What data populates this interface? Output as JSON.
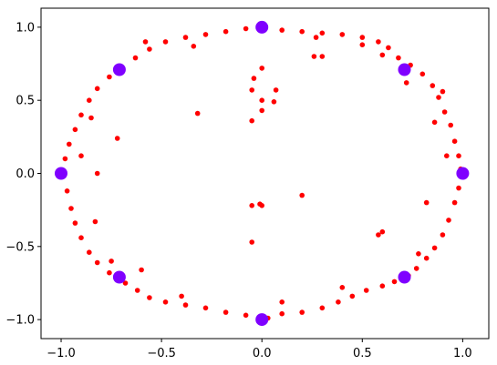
{
  "chart_data": {
    "type": "scatter",
    "title": "",
    "xlabel": "",
    "ylabel": "",
    "xlim": [
      -1.1,
      1.13
    ],
    "ylim": [
      -1.13,
      1.13
    ],
    "grid": false,
    "legend": "none",
    "x_ticks": [
      {
        "value": -1.0,
        "label": "−1.0"
      },
      {
        "value": -0.5,
        "label": "−0.5"
      },
      {
        "value": 0.0,
        "label": "0.0"
      },
      {
        "value": 0.5,
        "label": "0.5"
      },
      {
        "value": 1.0,
        "label": "1.0"
      }
    ],
    "y_ticks": [
      {
        "value": 1.0,
        "label": "1.0"
      },
      {
        "value": 0.5,
        "label": "0.5"
      },
      {
        "value": 0.0,
        "label": "0.0"
      },
      {
        "value": -0.5,
        "label": "−0.5"
      },
      {
        "value": -1.0,
        "label": "−1.0"
      }
    ],
    "series": [
      {
        "color": "#ff0000",
        "points": [
          [
            0.0,
            1.0
          ],
          [
            0.1,
            0.98
          ],
          [
            0.2,
            0.97
          ],
          [
            0.3,
            0.96
          ],
          [
            0.4,
            0.95
          ],
          [
            0.5,
            0.93
          ],
          [
            0.58,
            0.9
          ],
          [
            0.63,
            0.86
          ],
          [
            0.68,
            0.79
          ],
          [
            0.74,
            0.74
          ],
          [
            0.8,
            0.68
          ],
          [
            0.85,
            0.6
          ],
          [
            0.88,
            0.52
          ],
          [
            0.91,
            0.42
          ],
          [
            0.94,
            0.33
          ],
          [
            0.96,
            0.22
          ],
          [
            0.98,
            0.12
          ],
          [
            0.99,
            0.03
          ],
          [
            0.98,
            -0.1
          ],
          [
            0.96,
            -0.2
          ],
          [
            0.93,
            -0.32
          ],
          [
            0.9,
            -0.42
          ],
          [
            0.86,
            -0.51
          ],
          [
            0.82,
            -0.58
          ],
          [
            0.77,
            -0.65
          ],
          [
            0.73,
            -0.7
          ],
          [
            0.66,
            -0.74
          ],
          [
            0.6,
            -0.77
          ],
          [
            0.52,
            -0.8
          ],
          [
            0.45,
            -0.84
          ],
          [
            0.38,
            -0.88
          ],
          [
            0.3,
            -0.92
          ],
          [
            0.2,
            -0.95
          ],
          [
            0.1,
            -0.96
          ],
          [
            0.03,
            -0.99
          ],
          [
            -0.08,
            -0.97
          ],
          [
            -0.18,
            -0.95
          ],
          [
            -0.28,
            -0.92
          ],
          [
            -0.38,
            -0.9
          ],
          [
            -0.48,
            -0.88
          ],
          [
            -0.56,
            -0.85
          ],
          [
            -0.62,
            -0.8
          ],
          [
            -0.68,
            -0.75
          ],
          [
            -0.76,
            -0.68
          ],
          [
            -0.82,
            -0.61
          ],
          [
            -0.86,
            -0.54
          ],
          [
            -0.9,
            -0.44
          ],
          [
            -0.93,
            -0.34
          ],
          [
            -0.95,
            -0.24
          ],
          [
            -0.97,
            -0.12
          ],
          [
            -0.99,
            -0.02
          ],
          [
            -0.98,
            0.1
          ],
          [
            -0.96,
            0.2
          ],
          [
            -0.93,
            0.3
          ],
          [
            -0.9,
            0.4
          ],
          [
            -0.86,
            0.5
          ],
          [
            -0.82,
            0.58
          ],
          [
            -0.76,
            0.66
          ],
          [
            -0.7,
            0.73
          ],
          [
            -0.63,
            0.79
          ],
          [
            -0.56,
            0.85
          ],
          [
            -0.48,
            0.9
          ],
          [
            -0.38,
            0.93
          ],
          [
            -0.28,
            0.95
          ],
          [
            -0.18,
            0.97
          ],
          [
            -0.08,
            0.99
          ],
          [
            0.6,
            0.81
          ],
          [
            0.72,
            0.62
          ],
          [
            0.9,
            0.56
          ],
          [
            0.86,
            0.35
          ],
          [
            0.92,
            0.12
          ],
          [
            0.78,
            -0.55
          ],
          [
            0.58,
            -0.42
          ],
          [
            0.4,
            -0.78
          ],
          [
            0.1,
            -0.88
          ],
          [
            -0.4,
            -0.84
          ],
          [
            -0.6,
            -0.66
          ],
          [
            -0.83,
            -0.33
          ],
          [
            -0.82,
            0.0
          ],
          [
            -0.85,
            0.38
          ],
          [
            -0.72,
            0.24
          ],
          [
            -0.58,
            0.9
          ],
          [
            -0.34,
            0.87
          ],
          [
            -0.75,
            -0.6
          ],
          [
            -0.9,
            0.12
          ],
          [
            0.82,
            -0.2
          ],
          [
            0.5,
            0.88
          ],
          [
            0.27,
            0.93
          ],
          [
            0.26,
            0.8
          ],
          [
            0.3,
            0.8
          ],
          [
            -0.32,
            0.41
          ],
          [
            -0.05,
            0.36
          ],
          [
            0.0,
            0.72
          ],
          [
            -0.04,
            0.65
          ],
          [
            -0.05,
            0.57
          ],
          [
            0.0,
            0.5
          ],
          [
            0.07,
            0.57
          ],
          [
            0.06,
            0.49
          ],
          [
            0.0,
            0.43
          ],
          [
            -0.05,
            -0.22
          ],
          [
            -0.01,
            -0.21
          ],
          [
            0.2,
            -0.15
          ],
          [
            0.0,
            -0.22
          ],
          [
            -0.05,
            -0.47
          ],
          [
            0.6,
            -0.4
          ]
        ]
      },
      {
        "color": "#7f00ff",
        "points": [
          [
            0.0,
            1.0
          ],
          [
            0.71,
            0.71
          ],
          [
            1.0,
            0.0
          ],
          [
            0.71,
            -0.71
          ],
          [
            0.0,
            -1.0
          ],
          [
            -0.71,
            -0.71
          ],
          [
            -1.0,
            0.0
          ],
          [
            -0.71,
            0.71
          ]
        ]
      }
    ]
  }
}
